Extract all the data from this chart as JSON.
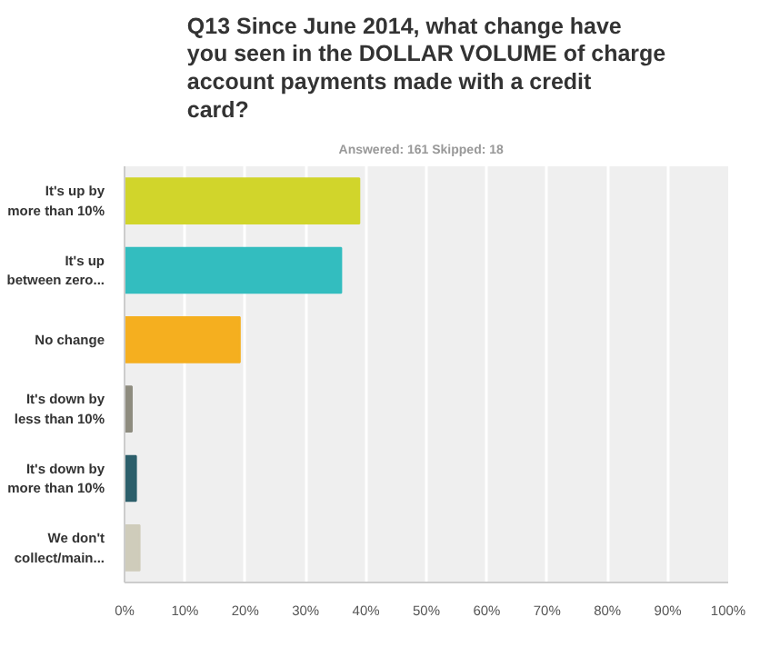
{
  "chart_data": {
    "type": "bar",
    "orientation": "horizontal",
    "title": "Q13 Since June 2014, what change have you seen in the DOLLAR VOLUME of charge account payments made with a credit card?",
    "subtitle": "Answered: 161    Skipped: 18",
    "categories": [
      "It's up by\nmore than 10%",
      "It's up\nbetween zero...",
      "No change",
      "It's down by\nless than 10%",
      "It's down by\nmore than 10%",
      "We don't\ncollect/main..."
    ],
    "values": [
      38.9,
      35.9,
      19.1,
      1.2,
      1.9,
      2.5
    ],
    "colors": [
      "#d1d52b",
      "#33bdbf",
      "#f5af1f",
      "#8e8c7f",
      "#2c5f6b",
      "#cfccbb"
    ],
    "xlim": [
      0,
      100
    ],
    "xticks": [
      {
        "value": 0,
        "label": "0%"
      },
      {
        "value": 10,
        "label": "10%"
      },
      {
        "value": 20,
        "label": "20%"
      },
      {
        "value": 30,
        "label": "30%"
      },
      {
        "value": 40,
        "label": "40%"
      },
      {
        "value": 50,
        "label": "50%"
      },
      {
        "value": 60,
        "label": "60%"
      },
      {
        "value": 70,
        "label": "70%"
      },
      {
        "value": 80,
        "label": "80%"
      },
      {
        "value": 90,
        "label": "90%"
      },
      {
        "value": 100,
        "label": "100%"
      }
    ],
    "grid": "x"
  }
}
